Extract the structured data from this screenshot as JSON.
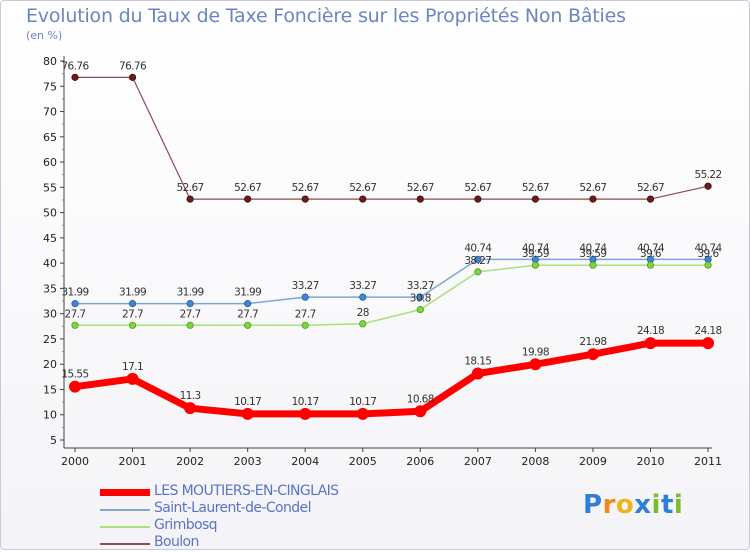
{
  "header": {
    "title": "Evolution du Taux de Taxe Foncière sur les Propriétés Non Bâties",
    "subtitle": "(en %)"
  },
  "logo": {
    "text": "Proxiti",
    "letters": [
      "P",
      "r",
      "o",
      "x",
      "i",
      "t",
      "i"
    ]
  },
  "chart_data": {
    "type": "line",
    "title": "Evolution du Taux de Taxe Foncière sur les Propriétés Non Bâties",
    "ylabel": "(en %)",
    "xlabel": "",
    "categories": [
      "2000",
      "2001",
      "2002",
      "2003",
      "2004",
      "2005",
      "2006",
      "2007",
      "2008",
      "2009",
      "2010",
      "2011"
    ],
    "ylim": [
      5,
      80
    ],
    "yticks": [
      5,
      10,
      15,
      20,
      25,
      30,
      35,
      40,
      45,
      50,
      55,
      60,
      65,
      70,
      75,
      80
    ],
    "grid": false,
    "legend_position": "bottom-left",
    "series": [
      {
        "name": "LES MOUTIERS-EN-CINGLAIS",
        "color": "#ff0000",
        "values": [
          15.55,
          17.1,
          11.3,
          10.17,
          10.17,
          10.17,
          10.68,
          18.15,
          19.98,
          21.98,
          24.18,
          24.18
        ],
        "labels": [
          "15.55",
          "17.1",
          "11.3",
          "10.17",
          "10.17",
          "10.17",
          "10.68",
          "18.15",
          "19.98",
          "21.98",
          "24.18",
          "24.18"
        ]
      },
      {
        "name": "Saint-Laurent-de-Condel",
        "color": "#7fa6cf",
        "values": [
          31.99,
          31.99,
          31.99,
          31.99,
          33.27,
          33.27,
          33.27,
          40.74,
          40.74,
          40.74,
          40.74,
          40.74
        ],
        "labels": [
          "31.99",
          "31.99",
          "31.99",
          "31.99",
          "33.27",
          "33.27",
          "33.27",
          "40.74",
          "40.74",
          "40.74",
          "40.74",
          "40.74"
        ]
      },
      {
        "name": "Grimbosq",
        "color": "#a8e07a",
        "values": [
          27.7,
          27.7,
          27.7,
          27.7,
          27.7,
          28,
          30.8,
          38.27,
          39.59,
          39.59,
          39.6,
          39.6
        ],
        "labels": [
          "27.7",
          "27.7",
          "27.7",
          "27.7",
          "27.7",
          "28",
          "30.8",
          "38.27",
          "39.59",
          "39.59",
          "39.6",
          "39.6"
        ]
      },
      {
        "name": "Boulon",
        "color": "#8b4d4d",
        "values": [
          76.76,
          76.76,
          52.67,
          52.67,
          52.67,
          52.67,
          52.67,
          52.67,
          52.67,
          52.67,
          52.67,
          55.22
        ],
        "labels": [
          "76.76",
          "76.76",
          "52.67",
          "52.67",
          "52.67",
          "52.67",
          "52.67",
          "52.67",
          "52.67",
          "52.67",
          "52.67",
          "55.22"
        ]
      }
    ]
  }
}
